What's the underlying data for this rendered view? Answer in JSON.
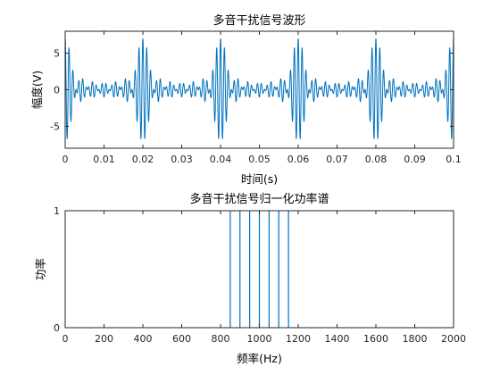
{
  "chart_data": [
    {
      "type": "line",
      "title": "多音干扰信号波形",
      "xlabel": "时间(s)",
      "ylabel": "幅度(V)",
      "xlim": [
        0,
        0.1
      ],
      "ylim": [
        -8,
        8
      ],
      "xticks": [
        "0",
        "0.01",
        "0.02",
        "0.03",
        "0.04",
        "0.05",
        "0.06",
        "0.07",
        "0.08",
        "0.09",
        "0.1"
      ],
      "yticks": [
        "-5",
        "0",
        "5"
      ],
      "grid": false,
      "series": [
        {
          "color": "#0072BD",
          "tones_hz": [
            850,
            900,
            950,
            1000,
            1050,
            1100,
            1150
          ],
          "tone_amplitude": 1,
          "peak_amplitude": 7,
          "beat_period_s": 0.02
        }
      ]
    },
    {
      "type": "line",
      "title": "多音干扰信号归一化功率谱",
      "xlabel": "频率(Hz)",
      "ylabel": "功率",
      "xlim": [
        0,
        2000
      ],
      "ylim": [
        0,
        1
      ],
      "xticks": [
        "0",
        "200",
        "400",
        "600",
        "800",
        "1000",
        "1200",
        "1400",
        "1600",
        "1800",
        "2000"
      ],
      "yticks": [
        "0",
        "1"
      ],
      "grid": false,
      "series": [
        {
          "color": "#0072BD",
          "x": [
            850,
            900,
            950,
            1000,
            1050,
            1100,
            1150
          ],
          "y": [
            1,
            1,
            1,
            1,
            1,
            1,
            1
          ]
        }
      ]
    }
  ]
}
